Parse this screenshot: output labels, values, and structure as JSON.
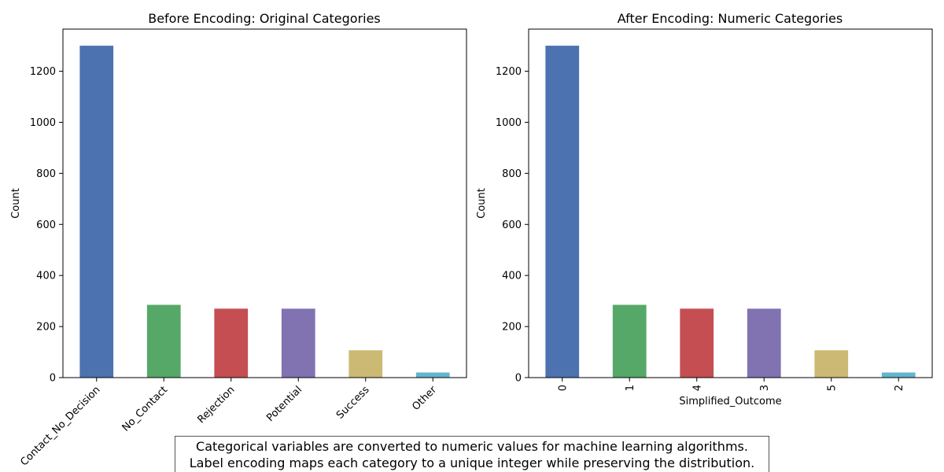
{
  "chart_data": [
    {
      "type": "bar",
      "title": "Before Encoding: Original Categories",
      "xlabel": "",
      "ylabel": "Count",
      "categories": [
        "Contact_No_Decision",
        "No_Contact",
        "Rejection",
        "Potential",
        "Success",
        "Other"
      ],
      "values": [
        1300,
        285,
        270,
        270,
        107,
        20
      ],
      "colors": [
        "#4c72b0",
        "#55a868",
        "#c44e52",
        "#8172b2",
        "#ccb974",
        "#64b5cd"
      ],
      "yticks": [
        0,
        200,
        400,
        600,
        800,
        1000,
        1200
      ],
      "ylim": [
        0,
        1365
      ],
      "grid": false,
      "tick_rotation": 45
    },
    {
      "type": "bar",
      "title": "After Encoding: Numeric Categories",
      "xlabel": "Simplified_Outcome",
      "ylabel": "Count",
      "categories": [
        "0",
        "1",
        "4",
        "3",
        "5",
        "2"
      ],
      "values": [
        1300,
        285,
        270,
        270,
        107,
        20
      ],
      "colors": [
        "#4c72b0",
        "#55a868",
        "#c44e52",
        "#8172b2",
        "#ccb974",
        "#64b5cd"
      ],
      "yticks": [
        0,
        200,
        400,
        600,
        800,
        1000,
        1200
      ],
      "ylim": [
        0,
        1365
      ],
      "grid": false,
      "tick_rotation": 90
    }
  ],
  "caption": {
    "line1": "Categorical variables are converted to numeric values for machine learning algorithms.",
    "line2": "Label encoding maps each category to a unique integer while preserving the distribution."
  }
}
